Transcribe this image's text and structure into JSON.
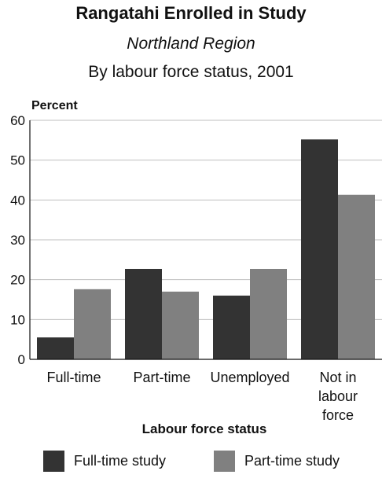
{
  "chart_data": {
    "type": "bar",
    "title": "Rangatahi Enrolled in Study",
    "subtitle": "Northland Region",
    "subtitle2": "By labour force status, 2001",
    "ylabel": "Percent",
    "xlabel": "Labour force status",
    "ylim": [
      0,
      60
    ],
    "yticks": [
      "0",
      "10",
      "20",
      "30",
      "40",
      "50",
      "60"
    ],
    "grid": true,
    "legend_position": "bottom",
    "categories": [
      [
        "Full-time"
      ],
      [
        "Part-time"
      ],
      [
        "Unemployed"
      ],
      [
        "Not in",
        "labour",
        "force"
      ]
    ],
    "series": [
      {
        "name": "Full-time study",
        "color": "#333333",
        "values": [
          5.5,
          22.7,
          16.0,
          55.2
        ]
      },
      {
        "name": "Part-time study",
        "color": "#808080",
        "values": [
          17.6,
          17.0,
          22.7,
          41.3
        ]
      }
    ]
  }
}
